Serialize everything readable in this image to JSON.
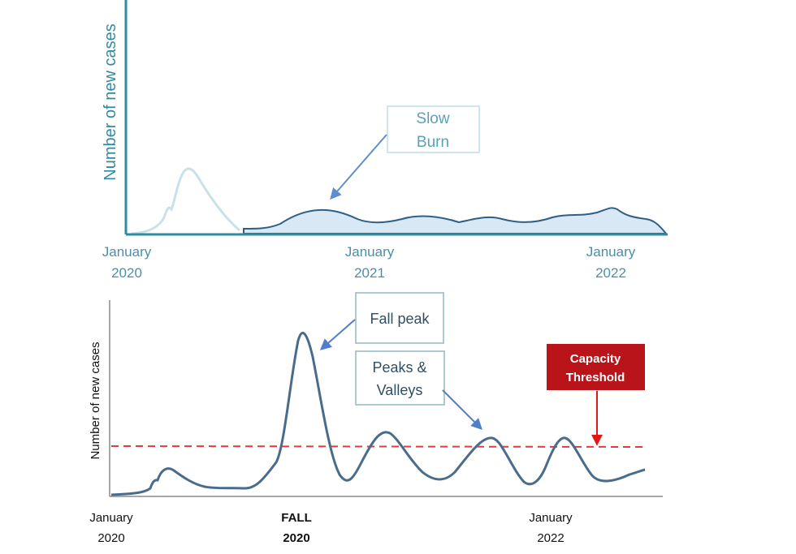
{
  "chart_data": [
    {
      "type": "area",
      "ylabel": "Number of new cases",
      "x_ticks": [
        {
          "line1": "January",
          "line2": "2020"
        },
        {
          "line1": "January",
          "line2": "2021"
        },
        {
          "line1": "January",
          "line2": "2022"
        }
      ],
      "annotations": [
        {
          "line1": "Slow",
          "line2": "Burn"
        }
      ],
      "colors": {
        "axis": "#2f8aa3",
        "early_curve": "#c9e2ea",
        "main_line": "#2f5f86",
        "main_fill": "#d8e8f4",
        "arrow": "#5b8fcf"
      }
    },
    {
      "type": "line",
      "ylabel": "Number of new cases",
      "x_ticks": [
        {
          "line1": "January",
          "line2": "2020",
          "bold": false
        },
        {
          "line1": "FALL",
          "line2": "2020",
          "bold": true
        },
        {
          "line1": "January",
          "line2": "2022",
          "bold": false
        }
      ],
      "annotations": [
        {
          "line1": "Fall peak",
          "line2": ""
        },
        {
          "line1": "Peaks &",
          "line2": "Valleys"
        }
      ],
      "threshold": {
        "line1": "Capacity",
        "line2": "Threshold"
      },
      "colors": {
        "axis": "#8a8a8a",
        "line": "#4a6c8c",
        "threshold": "#e03c3c",
        "capacity_box": "#b8141a",
        "arrow": "#4f7fc8"
      }
    }
  ]
}
